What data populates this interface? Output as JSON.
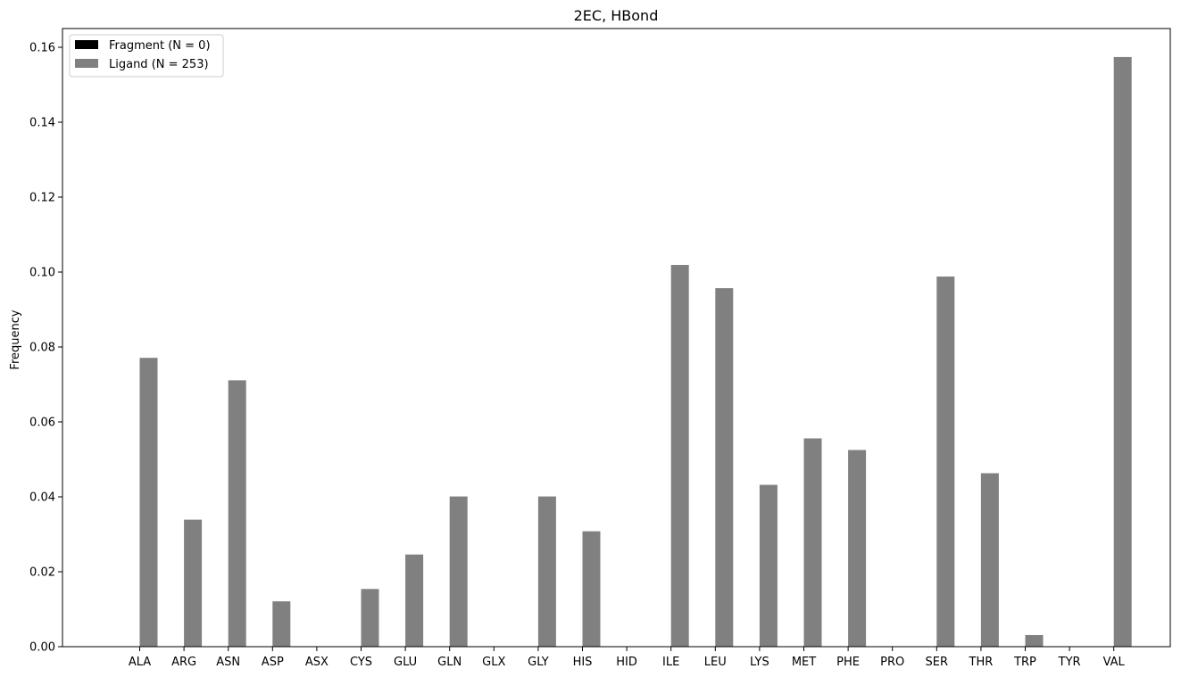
{
  "chart_data": {
    "type": "bar",
    "title": "2EC, HBond",
    "xlabel": "",
    "ylabel": "Frequency",
    "ylim": [
      0,
      0.165
    ],
    "yticks": [
      0.0,
      0.02,
      0.04,
      0.06,
      0.08,
      0.1,
      0.12,
      0.14,
      0.16
    ],
    "ytick_labels": [
      "0.00",
      "0.02",
      "0.04",
      "0.06",
      "0.08",
      "0.10",
      "0.12",
      "0.14",
      "0.16"
    ],
    "categories": [
      "ALA",
      "ARG",
      "ASN",
      "ASP",
      "ASX",
      "CYS",
      "GLU",
      "GLN",
      "GLX",
      "GLY",
      "HIS",
      "HID",
      "ILE",
      "LEU",
      "LYS",
      "MET",
      "PHE",
      "PRO",
      "SER",
      "THR",
      "TRP",
      "TYR",
      "VAL"
    ],
    "series": [
      {
        "name": "Fragment (N = 0)",
        "color": "#000000",
        "values": [
          0,
          0,
          0,
          0,
          0,
          0,
          0,
          0,
          0,
          0,
          0,
          0,
          0,
          0,
          0,
          0,
          0,
          0,
          0,
          0,
          0,
          0,
          0
        ]
      },
      {
        "name": "Ligand (N = 253)",
        "color": "#808080",
        "values": [
          0.0771,
          0.0339,
          0.0711,
          0.0121,
          0,
          0.0154,
          0.0246,
          0.0401,
          0,
          0.0401,
          0.0308,
          0,
          0.1019,
          0.0957,
          0.0432,
          0.0556,
          0.0525,
          0,
          0.0988,
          0.0463,
          0.0031,
          0,
          0.1574
        ]
      }
    ],
    "legend_position": "top-left",
    "grid": false
  }
}
